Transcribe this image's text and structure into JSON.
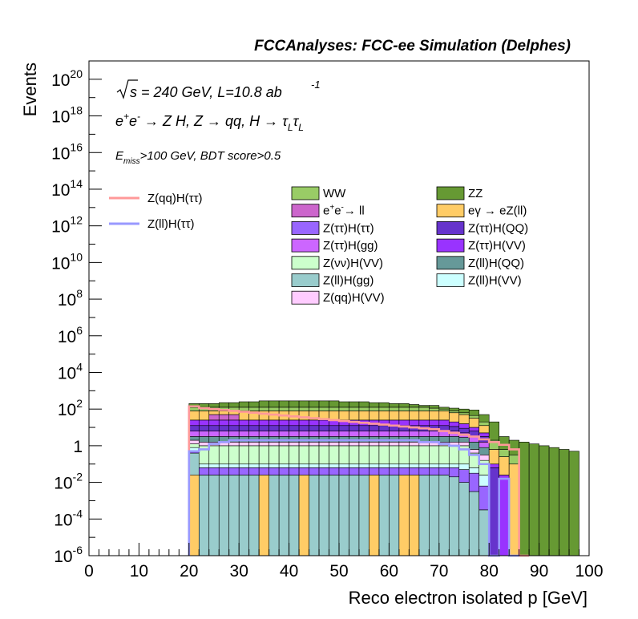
{
  "header": {
    "title": "FCCAnalyses: FCC-ee Simulation (Delphes)"
  },
  "annotations": {
    "line1": "√s = 240 GeV, L=10.8 ab -1",
    "line2": "e+e- → Z H, Z → qq, H → τL τL",
    "line3": "Emiss>100 GeV, BDT score>0.5"
  },
  "chart_data": {
    "type": "bar",
    "stacked": true,
    "log_y": true,
    "xlabel": "Reco electron isolated p [GeV]",
    "ylabel": "Events",
    "xlim": [
      0,
      100
    ],
    "ylim": [
      1e-06,
      1e+21
    ],
    "bin_width": 2,
    "x_ticks": [
      "0",
      "10",
      "20",
      "30",
      "40",
      "50",
      "60",
      "70",
      "80",
      "90",
      "100"
    ],
    "y_ticks": [
      {
        "mant": "10",
        "exp": "-6"
      },
      {
        "mant": "10",
        "exp": "-4"
      },
      {
        "mant": "10",
        "exp": "-2"
      },
      {
        "mant": "1",
        "exp": ""
      },
      {
        "mant": "10",
        "exp": "2"
      },
      {
        "mant": "10",
        "exp": "4"
      },
      {
        "mant": "10",
        "exp": "6"
      },
      {
        "mant": "10",
        "exp": "8"
      },
      {
        "mant": "10",
        "exp": "10"
      },
      {
        "mant": "10",
        "exp": "12"
      },
      {
        "mant": "10",
        "exp": "14"
      },
      {
        "mant": "10",
        "exp": "16"
      },
      {
        "mant": "10",
        "exp": "18"
      },
      {
        "mant": "10",
        "exp": "20"
      }
    ],
    "stack_bins": [
      {
        "x": 20,
        "h": [
          -0.4,
          -0.3,
          -0.1,
          0.1,
          0.3,
          0.5,
          0.8,
          1.1,
          1.4,
          1.7,
          1.9,
          2.1,
          2.3
        ],
        "ee_ll": false
      },
      {
        "x": 22,
        "h": [
          -1.6,
          -1.2,
          -1.0,
          0.0,
          0.2,
          0.5,
          0.8,
          1.1,
          1.4,
          1.7,
          1.9,
          2.1,
          2.3
        ],
        "ee_ll": false
      },
      {
        "x": 24,
        "h": [
          -1.6,
          -1.2,
          -1.0,
          0.0,
          0.2,
          0.5,
          0.8,
          1.1,
          1.4,
          1.7,
          1.9,
          2.1,
          2.3
        ],
        "ee_ll": true
      },
      {
        "x": 26,
        "h": [
          -1.6,
          -1.2,
          -1.0,
          0.0,
          0.2,
          0.5,
          0.8,
          1.1,
          1.4,
          1.7,
          1.9,
          2.1,
          2.35
        ],
        "ee_ll": true
      },
      {
        "x": 28,
        "h": [
          -1.6,
          -1.2,
          -1.0,
          0.0,
          0.2,
          0.5,
          0.8,
          1.1,
          1.4,
          1.7,
          1.9,
          2.1,
          2.35
        ],
        "ee_ll": true
      },
      {
        "x": 30,
        "h": [
          -1.6,
          -1.2,
          -1.0,
          0.0,
          0.2,
          0.5,
          0.8,
          1.1,
          1.4,
          1.7,
          1.9,
          2.1,
          2.4
        ],
        "ee_ll": false
      },
      {
        "x": 32,
        "h": [
          -1.6,
          -1.2,
          -1.0,
          0.0,
          0.2,
          0.5,
          0.8,
          1.1,
          1.4,
          1.7,
          1.9,
          2.1,
          2.4
        ],
        "ee_ll": false
      },
      {
        "x": 34,
        "h": [
          -1.6,
          -1.2,
          -1.0,
          0.0,
          0.2,
          0.5,
          0.8,
          1.1,
          1.4,
          1.7,
          1.9,
          2.1,
          2.45
        ],
        "ee_ll": false
      },
      {
        "x": 36,
        "h": [
          -1.6,
          -1.2,
          -1.0,
          0.0,
          0.2,
          0.5,
          0.8,
          1.1,
          1.4,
          1.7,
          1.9,
          2.1,
          2.45
        ],
        "ee_ll": false
      },
      {
        "x": 38,
        "h": [
          -1.6,
          -1.2,
          -1.0,
          0.0,
          0.2,
          0.5,
          0.8,
          1.1,
          1.4,
          1.7,
          1.9,
          2.1,
          2.45
        ],
        "ee_ll": false
      },
      {
        "x": 40,
        "h": [
          -1.6,
          -1.2,
          -1.0,
          0.0,
          0.2,
          0.5,
          0.8,
          1.1,
          1.4,
          1.7,
          1.9,
          2.1,
          2.45
        ],
        "ee_ll": false
      },
      {
        "x": 42,
        "h": [
          -1.6,
          -1.2,
          -1.0,
          0.0,
          0.2,
          0.5,
          0.8,
          1.1,
          1.4,
          1.7,
          1.9,
          2.1,
          2.45
        ],
        "ee_ll": false
      },
      {
        "x": 44,
        "h": [
          -1.6,
          -1.2,
          -1.0,
          0.0,
          0.2,
          0.5,
          0.8,
          1.1,
          1.4,
          1.7,
          1.9,
          2.1,
          2.45
        ],
        "ee_ll": false
      },
      {
        "x": 46,
        "h": [
          -1.6,
          -1.2,
          -1.0,
          0.0,
          0.2,
          0.5,
          0.8,
          1.1,
          1.4,
          1.7,
          1.9,
          2.1,
          2.45
        ],
        "ee_ll": false
      },
      {
        "x": 48,
        "h": [
          -1.6,
          -1.2,
          -1.0,
          0.0,
          0.2,
          0.5,
          0.8,
          1.1,
          1.4,
          1.7,
          1.9,
          2.1,
          2.45
        ],
        "ee_ll": false
      },
      {
        "x": 50,
        "h": [
          -1.6,
          -1.2,
          -1.0,
          0.0,
          0.2,
          0.5,
          0.8,
          1.1,
          1.4,
          1.7,
          1.9,
          2.1,
          2.4
        ],
        "ee_ll": false
      },
      {
        "x": 52,
        "h": [
          -1.6,
          -1.2,
          -1.0,
          0.0,
          0.2,
          0.5,
          0.8,
          1.1,
          1.4,
          1.7,
          1.9,
          2.1,
          2.4
        ],
        "ee_ll": false
      },
      {
        "x": 54,
        "h": [
          -1.6,
          -1.2,
          -1.0,
          0.0,
          0.2,
          0.5,
          0.8,
          1.1,
          1.4,
          1.7,
          1.9,
          2.1,
          2.4
        ],
        "ee_ll": false
      },
      {
        "x": 56,
        "h": [
          -1.6,
          -1.2,
          -1.0,
          0.0,
          0.2,
          0.5,
          0.8,
          1.1,
          1.4,
          1.7,
          1.9,
          2.1,
          2.35
        ],
        "ee_ll": false
      },
      {
        "x": 58,
        "h": [
          -1.6,
          -1.2,
          -1.0,
          0.0,
          0.2,
          0.5,
          0.8,
          1.1,
          1.4,
          1.7,
          1.9,
          2.1,
          2.35
        ],
        "ee_ll": false
      },
      {
        "x": 60,
        "h": [
          -1.6,
          -1.2,
          -1.0,
          0.0,
          0.2,
          0.5,
          0.8,
          1.1,
          1.4,
          1.7,
          1.9,
          2.1,
          2.3
        ],
        "ee_ll": false
      },
      {
        "x": 62,
        "h": [
          -1.6,
          -1.2,
          -1.0,
          0.0,
          0.2,
          0.5,
          0.8,
          1.1,
          1.4,
          1.7,
          1.9,
          2.1,
          2.3
        ],
        "ee_ll": false
      },
      {
        "x": 64,
        "h": [
          -1.6,
          -1.2,
          -1.0,
          0.0,
          0.2,
          0.5,
          0.8,
          1.1,
          1.4,
          1.7,
          1.9,
          2.1,
          2.25
        ],
        "ee_ll": false
      },
      {
        "x": 66,
        "h": [
          -1.6,
          -1.2,
          -1.0,
          0.0,
          0.2,
          0.5,
          0.8,
          1.1,
          1.4,
          1.7,
          1.9,
          2.1,
          2.2
        ],
        "ee_ll": false
      },
      {
        "x": 68,
        "h": [
          -1.6,
          -1.2,
          -1.0,
          0.0,
          0.2,
          0.5,
          0.8,
          1.1,
          1.4,
          1.7,
          1.9,
          2.05,
          2.2
        ],
        "ee_ll": false
      },
      {
        "x": 70,
        "h": [
          -1.6,
          -1.2,
          -1.0,
          0.0,
          0.2,
          0.5,
          0.8,
          1.1,
          1.4,
          1.7,
          1.9,
          2.0,
          2.1
        ],
        "ee_ll": false
      },
      {
        "x": 72,
        "h": [
          -1.7,
          -1.2,
          -1.0,
          0.0,
          0.2,
          0.5,
          0.8,
          1.05,
          1.3,
          1.6,
          1.8,
          1.9,
          2.05
        ],
        "ee_ll": false
      },
      {
        "x": 74,
        "h": [
          -2.0,
          -1.3,
          -1.0,
          0.0,
          0.2,
          0.45,
          0.7,
          0.95,
          1.2,
          1.5,
          1.7,
          1.8,
          2.0
        ],
        "ee_ll": false
      },
      {
        "x": 76,
        "h": [
          -2.5,
          -1.5,
          -1.2,
          -0.4,
          -0.2,
          0.2,
          0.5,
          0.8,
          1.0,
          1.3,
          1.5,
          1.65,
          1.95
        ],
        "ee_ll": false
      },
      {
        "x": 78,
        "h": [
          -3.5,
          -2.2,
          -1.6,
          -0.8,
          -0.5,
          -0.1,
          0.2,
          0.5,
          0.7,
          0.9,
          1.1,
          1.3,
          1.7
        ],
        "ee_ll": false
      },
      {
        "x": 80,
        "h": [
          -6.0,
          -6.0,
          -6.0,
          -6.0,
          -6.0,
          -6.0,
          -6.0,
          -1.2,
          -1.0,
          -0.5,
          -0.2,
          0.3,
          1.3
        ],
        "ee_ll": false
      },
      {
        "x": 82,
        "h": [
          -6.0,
          -6.0,
          -6.0,
          -6.0,
          -6.0,
          -6.0,
          -6.0,
          -6.0,
          -1.6,
          -1.0,
          -0.6,
          -0.2,
          0.5
        ],
        "ee_ll": false
      },
      {
        "x": 84,
        "h": [
          -6.0,
          -6.0,
          -6.0,
          -6.0,
          -6.0,
          -6.0,
          -6.0,
          -6.0,
          -6.0,
          -6.0,
          -1.0,
          -0.5,
          0.3
        ],
        "ee_ll": false
      },
      {
        "x": 86,
        "h": [
          -6.0,
          -6.0,
          -6.0,
          -6.0,
          -6.0,
          -6.0,
          -6.0,
          -6.0,
          -6.0,
          -6.0,
          -6.0,
          -6.0,
          0.2
        ],
        "ee_ll": false
      },
      {
        "x": 88,
        "h": [
          -6.0,
          -6.0,
          -6.0,
          -6.0,
          -6.0,
          -6.0,
          -6.0,
          -6.0,
          -6.0,
          -6.0,
          -6.0,
          -6.0,
          0.1
        ],
        "ee_ll": false
      },
      {
        "x": 90,
        "h": [
          -6.0,
          -6.0,
          -6.0,
          -6.0,
          -6.0,
          -6.0,
          -6.0,
          -6.0,
          -6.0,
          -6.0,
          -6.0,
          -6.0,
          0.0
        ],
        "ee_ll": false
      },
      {
        "x": 92,
        "h": [
          -6.0,
          -6.0,
          -6.0,
          -6.0,
          -6.0,
          -6.0,
          -6.0,
          -6.0,
          -6.0,
          -6.0,
          -6.0,
          -6.0,
          -0.1
        ],
        "ee_ll": false
      },
      {
        "x": 94,
        "h": [
          -6.0,
          -6.0,
          -6.0,
          -6.0,
          -6.0,
          -6.0,
          -6.0,
          -6.0,
          -6.0,
          -6.0,
          -6.0,
          -6.0,
          -0.2
        ],
        "ee_ll": false
      },
      {
        "x": 96,
        "h": [
          -6.0,
          -6.0,
          -6.0,
          -6.0,
          -6.0,
          -6.0,
          -6.0,
          -6.0,
          -6.0,
          -6.0,
          -6.0,
          -6.0,
          -0.3
        ],
        "ee_ll": false
      }
    ],
    "stack_layers": [
      {
        "name": "Z(ll)H(gg)",
        "color": "#99cccc"
      },
      {
        "name": "Z(ττ)H(ττ)",
        "color": "#9966ff"
      },
      {
        "name": "Z(ll)H(VV)",
        "color": "#ccffff"
      },
      {
        "name": "Z(νν)H(VV)",
        "color": "#ccffcc"
      },
      {
        "name": "Z(qq)H(VV)",
        "color": "#ffccff"
      },
      {
        "name": "Z(ll)H(QQ)",
        "color": "#669999"
      },
      {
        "name": "Z(ττ)H(gg)",
        "color": "#cc66ff"
      },
      {
        "name": "Z(ττ)H(QQ)",
        "color": "#6633cc"
      },
      {
        "name": "Z(ττ)H(VV)",
        "color": "#9933ff"
      },
      {
        "name": "e+e-→ ll",
        "color": "#cc66cc"
      },
      {
        "name": "eγ → eZ(ll)",
        "color": "#ffcc66"
      },
      {
        "name": "WW",
        "color": "#99cc66"
      },
      {
        "name": "ZZ",
        "color": "#669933"
      }
    ],
    "egamma_bins": [
      20,
      34,
      42,
      56,
      62,
      64
    ],
    "egamma_level": -1.6,
    "signal_lines": [
      {
        "name": "Z(qq)H(ττ)",
        "color": "#ff9999",
        "x": [
          20,
          22,
          24,
          26,
          28,
          30,
          32,
          34,
          36,
          38,
          40,
          42,
          44,
          46,
          48,
          50,
          52,
          54,
          56,
          58,
          60,
          62,
          64,
          66,
          68,
          70,
          72,
          74,
          76,
          78,
          80,
          82,
          84,
          86
        ],
        "y": [
          2.15,
          2.05,
          2.0,
          1.95,
          1.9,
          1.85,
          1.8,
          1.75,
          1.7,
          1.65,
          1.6,
          1.55,
          1.5,
          1.45,
          1.4,
          1.35,
          1.3,
          1.25,
          1.2,
          1.15,
          1.1,
          1.05,
          1.0,
          0.95,
          0.9,
          0.8,
          0.7,
          0.6,
          0.5,
          0.35,
          0.2,
          0.05,
          -0.2,
          -6
        ]
      },
      {
        "name": "Z(ll)H(ττ)",
        "color": "#9999ff",
        "x": [
          20,
          22,
          24,
          26,
          28,
          30,
          32,
          34,
          36,
          38,
          40,
          42,
          44,
          46,
          48,
          50,
          52,
          54,
          56,
          58,
          60,
          62,
          64,
          66,
          68,
          70,
          72,
          74,
          76,
          78,
          80,
          82,
          84
        ],
        "y": [
          -0.3,
          -0.2,
          0.1,
          0.2,
          0.3,
          0.3,
          0.3,
          0.3,
          0.3,
          0.3,
          0.3,
          0.3,
          0.3,
          0.3,
          0.3,
          0.3,
          0.3,
          0.3,
          0.3,
          0.3,
          0.3,
          0.3,
          0.3,
          0.2,
          0.2,
          0.1,
          0.0,
          -0.2,
          -0.5,
          -1.0,
          -6,
          -1.8,
          -6
        ]
      }
    ],
    "legend_signals": [
      {
        "label": "Z(qq)H(ττ)",
        "color": "#ff9999"
      },
      {
        "label": "Z(ll)H(ττ)",
        "color": "#9999ff"
      }
    ],
    "legend_backgrounds": [
      {
        "label": "WW",
        "color": "#99cc66"
      },
      {
        "label": "ZZ",
        "color": "#669933"
      },
      {
        "label": "e+e-→ ll",
        "color": "#cc66cc"
      },
      {
        "label": "eγ → eZ(ll)",
        "color": "#ffcc66"
      },
      {
        "label": "Z(ττ)H(ττ)",
        "color": "#9966ff"
      },
      {
        "label": "Z(ττ)H(QQ)",
        "color": "#6633cc"
      },
      {
        "label": "Z(ττ)H(gg)",
        "color": "#cc66ff"
      },
      {
        "label": "Z(ττ)H(VV)",
        "color": "#9933ff"
      },
      {
        "label": "Z(νν)H(VV)",
        "color": "#ccffcc"
      },
      {
        "label": "Z(ll)H(QQ)",
        "color": "#669999"
      },
      {
        "label": "Z(ll)H(gg)",
        "color": "#99cccc"
      },
      {
        "label": "Z(ll)H(VV)",
        "color": "#ccffff"
      },
      {
        "label": "Z(qq)H(VV)",
        "color": "#ffccff"
      }
    ]
  }
}
